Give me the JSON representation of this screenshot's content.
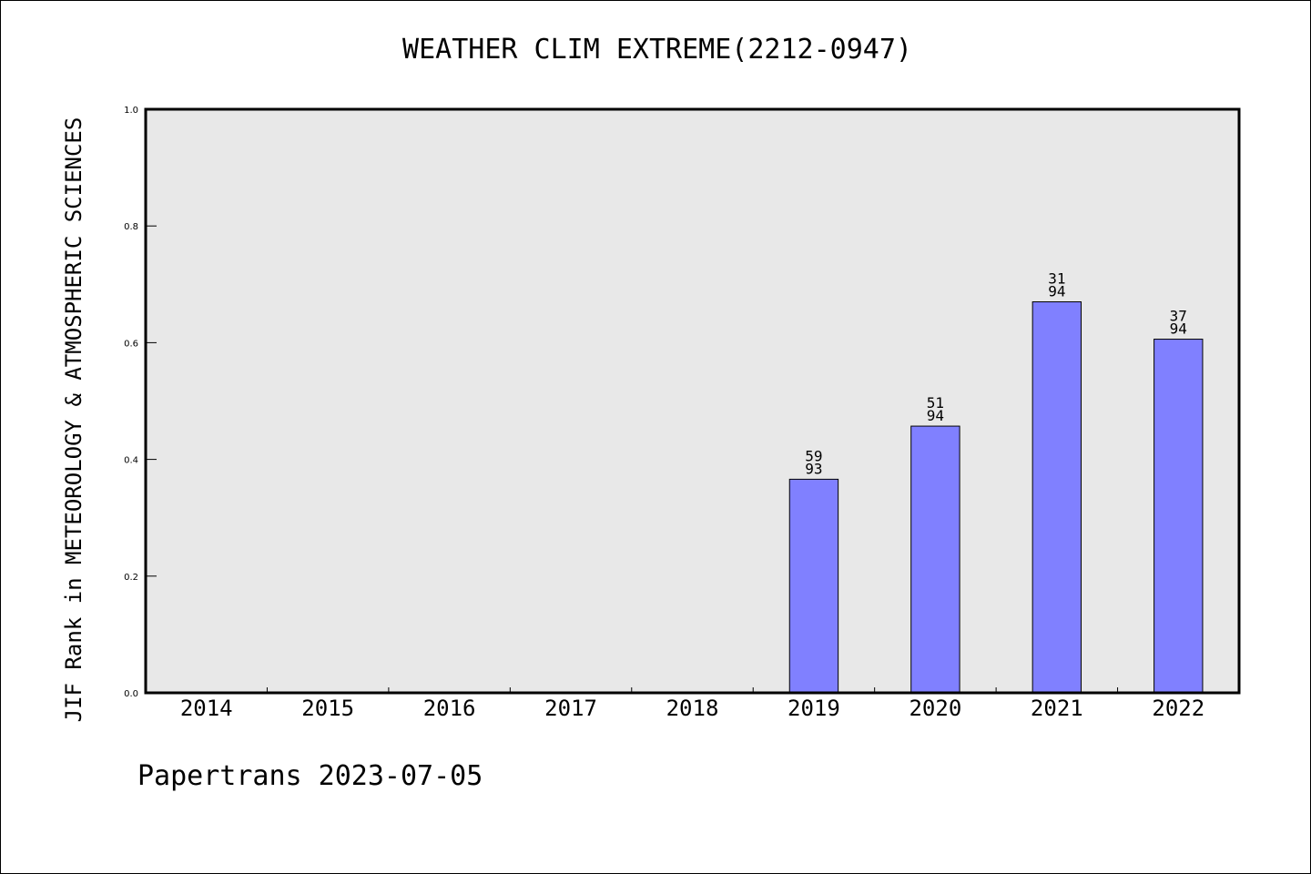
{
  "chart_data": {
    "type": "bar",
    "title": "WEATHER CLIM EXTREME(2212-0947)",
    "xlabel": "",
    "ylabel": "JIF Rank in METEOROLOGY & ATMOSPHERIC SCIENCES",
    "categories": [
      "2014",
      "2015",
      "2016",
      "2017",
      "2018",
      "2019",
      "2020",
      "2021",
      "2022"
    ],
    "values": [
      null,
      null,
      null,
      null,
      null,
      0.366,
      0.457,
      0.67,
      0.606
    ],
    "bar_labels": [
      null,
      null,
      null,
      null,
      null,
      {
        "rank": "59",
        "total": "93"
      },
      {
        "rank": "51",
        "total": "94"
      },
      {
        "rank": "31",
        "total": "94"
      },
      {
        "rank": "37",
        "total": "94"
      }
    ],
    "ylim": [
      0.0,
      1.0
    ],
    "yticks": [
      "0.0",
      "0.2",
      "0.4",
      "0.6",
      "0.8",
      "1.0"
    ],
    "grid": false,
    "colors": {
      "bar": "#8080ff",
      "plot_background": "#e8e8e8",
      "axes": "#000000"
    }
  },
  "footer": "Papertrans 2023-07-05"
}
